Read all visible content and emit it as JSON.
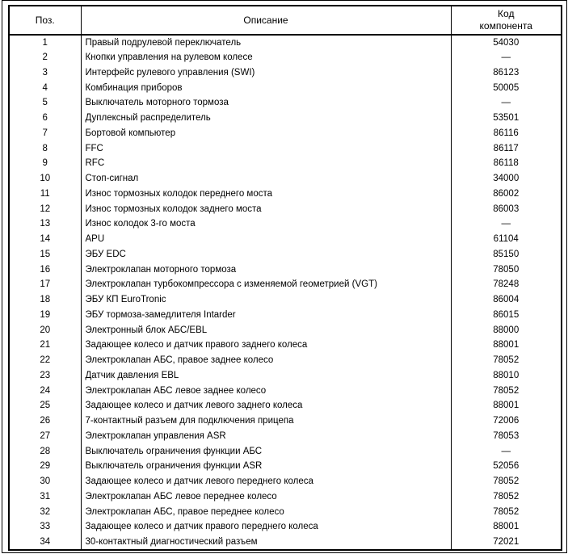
{
  "table": {
    "headers": {
      "pos": "Поз.",
      "description": "Описание",
      "code_line1": "Код",
      "code_line2": "компонента"
    },
    "rows": [
      {
        "pos": "1",
        "description": "Правый подрулевой переключатель",
        "code": "54030"
      },
      {
        "pos": "2",
        "description": "Кнопки управления на рулевом колесе",
        "code": "—"
      },
      {
        "pos": "3",
        "description": "Интерфейс рулевого управления (SWI)",
        "code": "86123"
      },
      {
        "pos": "4",
        "description": "Комбинация приборов",
        "code": "50005"
      },
      {
        "pos": "5",
        "description": "Выключатель моторного тормоза",
        "code": "—"
      },
      {
        "pos": "6",
        "description": "Дуплексный распределитель",
        "code": "53501"
      },
      {
        "pos": "7",
        "description": "Бортовой компьютер",
        "code": "86116"
      },
      {
        "pos": "8",
        "description": "FFC",
        "code": "86117"
      },
      {
        "pos": "9",
        "description": "RFC",
        "code": "86118"
      },
      {
        "pos": "10",
        "description": "Стоп-сигнал",
        "code": "34000"
      },
      {
        "pos": "11",
        "description": "Износ тормозных колодок переднего моста",
        "code": "86002"
      },
      {
        "pos": "12",
        "description": "Износ тормозных колодок заднего моста",
        "code": "86003"
      },
      {
        "pos": "13",
        "description": "Износ колодок 3-го моста",
        "code": "—"
      },
      {
        "pos": "14",
        "description": "APU",
        "code": "61104"
      },
      {
        "pos": "15",
        "description": "ЭБУ EDC",
        "code": "85150"
      },
      {
        "pos": "16",
        "description": "Электроклапан моторного тормоза",
        "code": "78050"
      },
      {
        "pos": "17",
        "description": "Электроклапан турбокомпрессора с изменяемой геометрией (VGT)",
        "code": "78248"
      },
      {
        "pos": "18",
        "description": "ЭБУ КП EuroTronic",
        "code": "86004"
      },
      {
        "pos": "19",
        "description": "ЭБУ тормоза-замедлителя Intarder",
        "code": "86015"
      },
      {
        "pos": "20",
        "description": "Электронный блок АБС/EBL",
        "code": "88000"
      },
      {
        "pos": "21",
        "description": "Задающее колесо и датчик правого заднего колеса",
        "code": "88001"
      },
      {
        "pos": "22",
        "description": "Электроклапан АБС, правое заднее колесо",
        "code": "78052"
      },
      {
        "pos": "23",
        "description": "Датчик давления EBL",
        "code": "88010"
      },
      {
        "pos": "24",
        "description": "Электроклапан АБС левое заднее колесо",
        "code": "78052"
      },
      {
        "pos": "25",
        "description": "Задающее колесо и датчик левого заднего колеса",
        "code": "88001"
      },
      {
        "pos": "26",
        "description": "7-контактный разъем для подключения прицепа",
        "code": "72006"
      },
      {
        "pos": "27",
        "description": "Электроклапан управления ASR",
        "code": "78053"
      },
      {
        "pos": "28",
        "description": "Выключатель ограничения функции АБС",
        "code": "—"
      },
      {
        "pos": "29",
        "description": "Выключатель ограничения функции ASR",
        "code": "52056"
      },
      {
        "pos": "30",
        "description": "Задающее колесо и датчик левого переднего колеса",
        "code": "78052"
      },
      {
        "pos": "31",
        "description": "Электроклапан АБС левое переднее колесо",
        "code": "78052"
      },
      {
        "pos": "32",
        "description": "Электроклапан АБС, правое переднее колесо",
        "code": "78052"
      },
      {
        "pos": "33",
        "description": "Задающее колесо и датчик правого переднего колеса",
        "code": "88001"
      },
      {
        "pos": "34",
        "description": "30-контактный диагностический разъем",
        "code": "72021"
      }
    ]
  }
}
